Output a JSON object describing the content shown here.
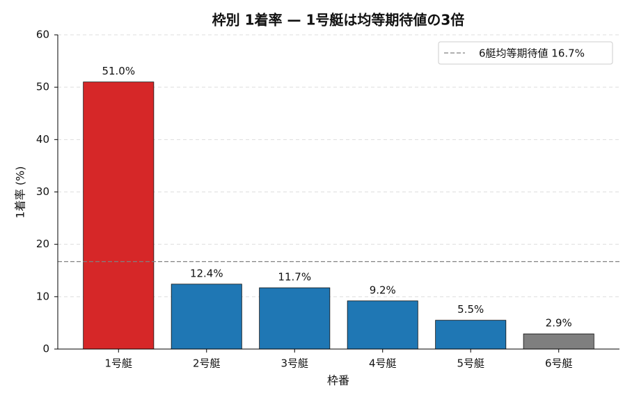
{
  "chart_data": {
    "type": "bar",
    "title": "枠別 1着率 — 1号艇は均等期待値の3倍",
    "x_label": "枠番",
    "y_label": "1着率 (%)",
    "categories": [
      "1号艇",
      "2号艇",
      "3号艇",
      "4号艇",
      "5号艇",
      "6号艇"
    ],
    "values": [
      51.0,
      12.4,
      11.7,
      9.2,
      5.5,
      2.9
    ],
    "value_labels": [
      "51.0%",
      "12.4%",
      "11.7%",
      "9.2%",
      "5.5%",
      "2.9%"
    ],
    "colors": [
      "#d62728",
      "#1f77b4",
      "#1f77b4",
      "#1f77b4",
      "#1f77b4",
      "#7f7f7f"
    ],
    "ylim": [
      0,
      60
    ],
    "yticks": [
      0,
      10,
      20,
      30,
      40,
      50,
      60
    ],
    "grid": true,
    "reference_line": {
      "value": 16.7,
      "label": "6艇均等期待値 16.7%",
      "color": "#808080"
    },
    "legend": "upper right"
  }
}
